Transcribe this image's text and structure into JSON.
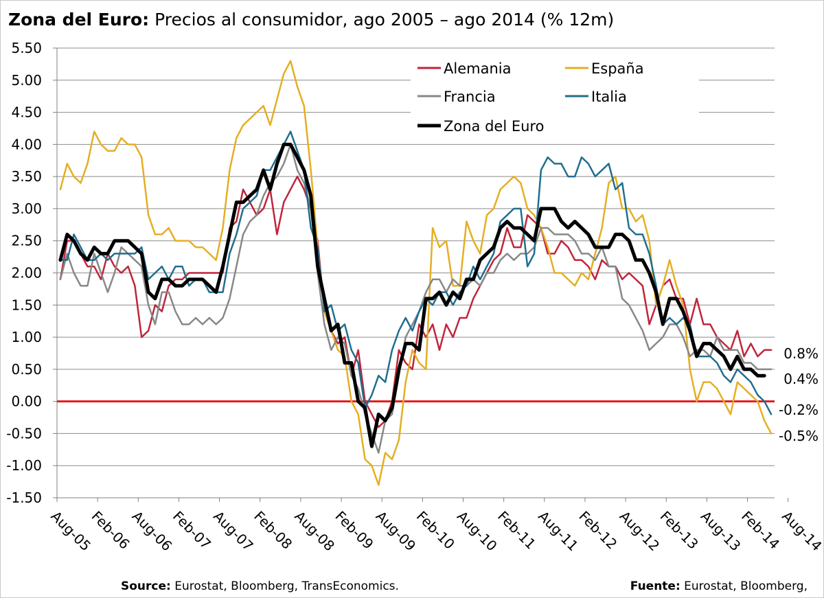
{
  "title": {
    "bold": "Zona del Euro:",
    "rest": " Precios al consumidor, ago 2005 – ago 2014 (% 12m)"
  },
  "footer": {
    "left_bold": "Source:",
    "left_rest": " Eurostat, Bloomberg, TransEconomics.",
    "right_bold": "Fuente:",
    "right_rest": " Eurostat, Bloomberg,"
  },
  "chart_data": {
    "type": "line",
    "start": "Aug-05",
    "x_tick_labels": [
      "Aug-05",
      "Feb-06",
      "Aug-06",
      "Feb-07",
      "Aug-07",
      "Feb-08",
      "Aug-08",
      "Feb-09",
      "Aug-09",
      "Feb-10",
      "Aug-10",
      "Feb-11",
      "Aug-11",
      "Feb-12",
      "Aug-12",
      "Feb-13",
      "Aug-13",
      "Feb-14",
      "Aug-14"
    ],
    "ylim": [
      -1.5,
      5.5
    ],
    "y_ticks": [
      "5.50",
      "5.00",
      "4.50",
      "4.00",
      "3.50",
      "3.00",
      "2.50",
      "2.00",
      "1.50",
      "1.00",
      "0.50",
      "0.00",
      "-0.50",
      "-1.00",
      "-1.50"
    ],
    "grid": true,
    "zero_line_color": "#e41a1c",
    "legend_position": "top-center",
    "end_labels": [
      "0.8%",
      "0.4%",
      "-0.2%",
      "-0.5%"
    ],
    "series": [
      {
        "name": "Alemania",
        "color": "#c0243b",
        "width": 2.5,
        "values": [
          1.9,
          2.5,
          2.5,
          2.3,
          2.1,
          2.1,
          1.9,
          2.3,
          2.1,
          2.0,
          2.1,
          1.8,
          1.0,
          1.1,
          1.5,
          1.4,
          1.8,
          1.9,
          1.9,
          2.0,
          2.0,
          2.0,
          2.0,
          2.0,
          2.0,
          2.7,
          2.8,
          3.3,
          3.1,
          2.9,
          3.0,
          3.3,
          2.6,
          3.1,
          3.3,
          3.5,
          3.3,
          3.0,
          2.5,
          1.4,
          1.1,
          0.9,
          1.0,
          0.4,
          0.8,
          0.0,
          -0.2,
          -0.4,
          -0.3,
          0.0,
          0.8,
          0.6,
          0.5,
          1.2,
          1.0,
          1.2,
          0.8,
          1.2,
          1.0,
          1.3,
          1.3,
          1.6,
          1.8,
          2.0,
          2.2,
          2.3,
          2.7,
          2.4,
          2.4,
          2.9,
          2.8,
          2.7,
          2.3,
          2.3,
          2.5,
          2.4,
          2.2,
          2.2,
          2.1,
          1.9,
          2.2,
          2.1,
          2.1,
          1.9,
          2.0,
          1.9,
          1.8,
          1.2,
          1.5,
          1.8,
          1.9,
          1.6,
          1.6,
          1.2,
          1.6,
          1.2,
          1.2,
          1.0,
          0.9,
          0.8,
          1.1,
          0.7,
          0.9,
          0.7,
          0.8,
          0.8
        ]
      },
      {
        "name": "España",
        "color": "#e5ae22",
        "width": 2.5,
        "values": [
          3.3,
          3.7,
          3.5,
          3.4,
          3.7,
          4.2,
          4.0,
          3.9,
          3.9,
          4.1,
          4.0,
          4.0,
          3.8,
          2.9,
          2.6,
          2.6,
          2.7,
          2.5,
          2.5,
          2.5,
          2.4,
          2.4,
          2.3,
          2.2,
          2.7,
          3.6,
          4.1,
          4.3,
          4.4,
          4.5,
          4.6,
          4.3,
          4.7,
          5.1,
          5.3,
          4.9,
          4.6,
          3.6,
          2.4,
          1.4,
          1.1,
          0.8,
          0.7,
          0.0,
          -0.2,
          -0.9,
          -1.0,
          -1.3,
          -0.8,
          -0.9,
          -0.6,
          0.3,
          0.8,
          0.6,
          0.5,
          2.7,
          2.4,
          2.5,
          1.8,
          1.8,
          2.8,
          2.5,
          2.3,
          2.9,
          3.0,
          3.3,
          3.4,
          3.5,
          3.4,
          3.0,
          2.9,
          2.7,
          2.4,
          2.0,
          2.0,
          1.9,
          1.8,
          2.0,
          1.9,
          2.3,
          2.7,
          3.4,
          3.5,
          3.0,
          3.0,
          2.8,
          2.9,
          2.5,
          1.5,
          1.8,
          2.2,
          1.8,
          1.5,
          0.5,
          0.0,
          0.3,
          0.3,
          0.2,
          0.0,
          -0.2,
          0.3,
          0.2,
          0.1,
          0.0,
          -0.3,
          -0.5
        ]
      },
      {
        "name": "Francia",
        "color": "#878787",
        "width": 2.5,
        "values": [
          1.9,
          2.3,
          2.0,
          1.8,
          1.8,
          2.3,
          2.0,
          1.7,
          2.0,
          2.4,
          2.3,
          2.2,
          2.1,
          1.5,
          1.2,
          1.7,
          1.7,
          1.4,
          1.2,
          1.2,
          1.3,
          1.2,
          1.3,
          1.2,
          1.3,
          1.6,
          2.1,
          2.6,
          2.8,
          2.9,
          3.2,
          3.4,
          3.5,
          3.7,
          4.0,
          3.6,
          3.4,
          3.0,
          2.0,
          1.2,
          0.8,
          1.0,
          0.9,
          0.4,
          0.2,
          -0.2,
          -0.5,
          -0.8,
          -0.3,
          -0.2,
          0.4,
          1.0,
          1.2,
          1.4,
          1.7,
          1.9,
          1.9,
          1.7,
          1.9,
          1.8,
          1.8,
          1.9,
          1.8,
          2.0,
          2.0,
          2.2,
          2.3,
          2.2,
          2.3,
          2.3,
          2.4,
          2.7,
          2.7,
          2.6,
          2.6,
          2.6,
          2.5,
          2.3,
          2.3,
          2.2,
          2.4,
          2.1,
          2.1,
          1.6,
          1.5,
          1.3,
          1.1,
          0.8,
          0.9,
          1.0,
          1.2,
          1.2,
          1.0,
          0.7,
          0.8,
          0.8,
          0.7,
          1.0,
          0.8,
          0.8,
          0.8,
          0.6,
          0.6,
          0.5,
          0.5,
          0.5
        ]
      },
      {
        "name": "Italia",
        "color": "#1f6e8f",
        "width": 2.5,
        "values": [
          2.2,
          2.2,
          2.6,
          2.4,
          2.2,
          2.2,
          2.3,
          2.2,
          2.3,
          2.3,
          2.3,
          2.3,
          2.4,
          1.9,
          2.0,
          2.1,
          1.9,
          2.1,
          2.1,
          1.8,
          1.9,
          1.9,
          1.7,
          1.7,
          1.7,
          2.3,
          2.6,
          3.0,
          3.1,
          3.2,
          3.6,
          3.6,
          3.8,
          4.0,
          4.2,
          3.9,
          3.6,
          2.7,
          2.4,
          1.4,
          1.5,
          1.1,
          1.2,
          0.8,
          0.6,
          -0.1,
          0.1,
          0.4,
          0.3,
          0.8,
          1.1,
          1.3,
          1.1,
          1.4,
          1.6,
          1.5,
          1.7,
          1.7,
          1.5,
          1.7,
          1.8,
          2.1,
          1.9,
          2.1,
          2.3,
          2.8,
          2.9,
          3.0,
          3.0,
          2.1,
          2.3,
          3.6,
          3.8,
          3.7,
          3.7,
          3.5,
          3.5,
          3.8,
          3.7,
          3.5,
          3.6,
          3.7,
          3.3,
          3.4,
          2.7,
          2.6,
          2.6,
          2.3,
          1.8,
          1.2,
          1.3,
          1.2,
          1.3,
          1.2,
          0.7,
          0.7,
          0.7,
          0.6,
          0.4,
          0.3,
          0.5,
          0.4,
          0.3,
          0.1,
          0.0,
          -0.2
        ]
      },
      {
        "name": "Zona del Euro",
        "color": "#000000",
        "width": 5,
        "values": [
          2.2,
          2.6,
          2.5,
          2.3,
          2.2,
          2.4,
          2.3,
          2.3,
          2.5,
          2.5,
          2.5,
          2.4,
          2.3,
          1.7,
          1.6,
          1.9,
          1.9,
          1.8,
          1.8,
          1.9,
          1.9,
          1.9,
          1.8,
          1.7,
          2.1,
          2.6,
          3.1,
          3.1,
          3.2,
          3.3,
          3.6,
          3.3,
          3.7,
          4.0,
          4.0,
          3.8,
          3.6,
          3.2,
          2.1,
          1.6,
          1.1,
          1.2,
          0.6,
          0.6,
          0.0,
          -0.1,
          -0.7,
          -0.2,
          -0.3,
          -0.1,
          0.5,
          0.9,
          0.9,
          0.8,
          1.6,
          1.6,
          1.7,
          1.5,
          1.7,
          1.6,
          1.9,
          1.9,
          2.2,
          2.3,
          2.4,
          2.7,
          2.8,
          2.7,
          2.7,
          2.6,
          2.5,
          3.0,
          3.0,
          3.0,
          2.8,
          2.7,
          2.8,
          2.7,
          2.6,
          2.4,
          2.4,
          2.4,
          2.6,
          2.6,
          2.5,
          2.2,
          2.2,
          2.0,
          1.7,
          1.2,
          1.6,
          1.6,
          1.4,
          1.1,
          0.7,
          0.9,
          0.9,
          0.8,
          0.7,
          0.5,
          0.7,
          0.5,
          0.5,
          0.4,
          0.4
        ]
      }
    ],
    "legend": [
      {
        "name": "Alemania",
        "color": "#c0243b"
      },
      {
        "name": "España",
        "color": "#e5ae22"
      },
      {
        "name": "Francia",
        "color": "#878787"
      },
      {
        "name": "Italia",
        "color": "#1f6e8f"
      },
      {
        "name": "Zona del Euro",
        "color": "#000000"
      }
    ]
  }
}
